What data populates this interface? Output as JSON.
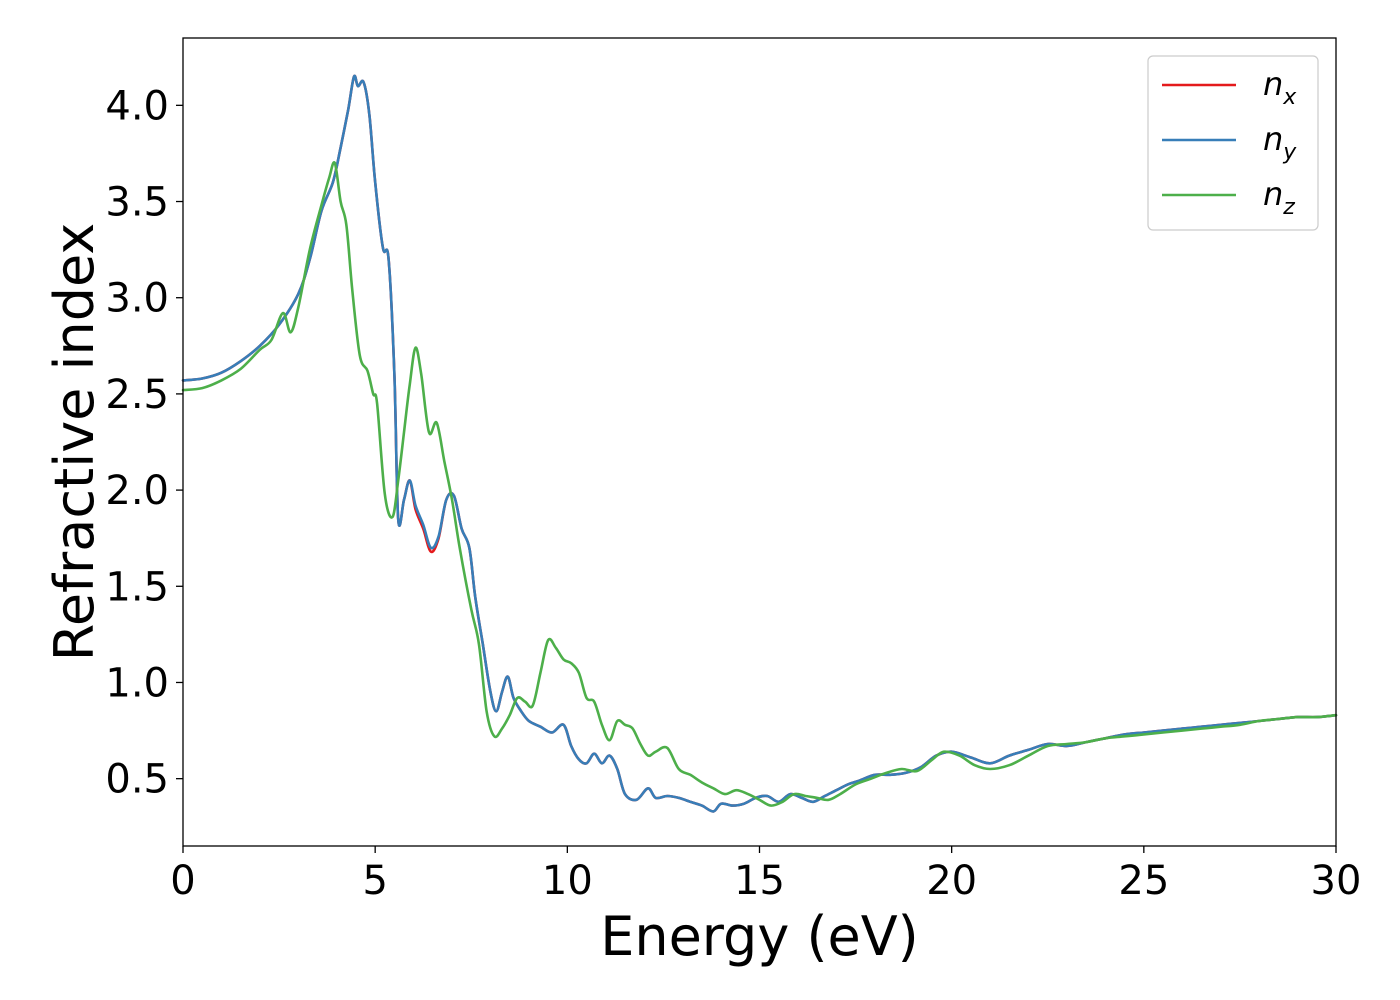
{
  "chart_data": {
    "type": "line",
    "title": "",
    "xlabel": "Energy (eV)",
    "ylabel": "Refractive index",
    "xlim": [
      0,
      30
    ],
    "ylim": [
      0.15,
      4.35
    ],
    "xticks": [
      0,
      5,
      10,
      15,
      20,
      25,
      30
    ],
    "xtick_labels": [
      "0",
      "5",
      "10",
      "15",
      "20",
      "25",
      "30"
    ],
    "yticks": [
      0.5,
      1.0,
      1.5,
      2.0,
      2.5,
      3.0,
      3.5,
      4.0
    ],
    "ytick_labels": [
      "0.5",
      "1.0",
      "1.5",
      "2.0",
      "2.5",
      "3.0",
      "3.5",
      "4.0"
    ],
    "grid": false,
    "legend": "top-right",
    "series": [
      {
        "name": "n",
        "subscript": "x",
        "color": "#e41a1c",
        "x": [
          0,
          0.5,
          1,
          1.5,
          2,
          2.5,
          3,
          3.3,
          3.6,
          3.9,
          4.1,
          4.3,
          4.45,
          4.55,
          4.7,
          4.85,
          5.0,
          5.2,
          5.35,
          5.5,
          5.6,
          5.75,
          5.9,
          6.05,
          6.25,
          6.45,
          6.65,
          6.85,
          7.05,
          7.25,
          7.45,
          7.6,
          7.8,
          8.0,
          8.15,
          8.3,
          8.45,
          8.6,
          8.8,
          9.0,
          9.3,
          9.6,
          9.9,
          10.1,
          10.3,
          10.5,
          10.7,
          10.9,
          11.1,
          11.3,
          11.5,
          11.8,
          12.1,
          12.3,
          12.6,
          12.9,
          13.2,
          13.5,
          13.8,
          14.0,
          14.3,
          14.6,
          14.9,
          15.2,
          15.5,
          15.8,
          16.1,
          16.4,
          16.7,
          17.0,
          17.3,
          17.6,
          18.0,
          18.4,
          18.8,
          19.2,
          19.6,
          20.0,
          20.5,
          21.0,
          21.5,
          22.0,
          22.5,
          23.0,
          23.5,
          24.0,
          24.5,
          25.0,
          25.5,
          26.0,
          26.5,
          27.0,
          27.5,
          28.0,
          28.5,
          29.0,
          29.5,
          30.0
        ],
        "y": [
          2.57,
          2.58,
          2.61,
          2.67,
          2.75,
          2.86,
          3.02,
          3.2,
          3.45,
          3.6,
          3.78,
          3.98,
          4.15,
          4.1,
          4.12,
          3.95,
          3.6,
          3.26,
          3.2,
          2.6,
          1.85,
          1.95,
          2.05,
          1.9,
          1.8,
          1.68,
          1.75,
          1.95,
          1.97,
          1.8,
          1.7,
          1.45,
          1.2,
          0.95,
          0.85,
          0.95,
          1.03,
          0.92,
          0.85,
          0.8,
          0.77,
          0.74,
          0.78,
          0.67,
          0.6,
          0.58,
          0.63,
          0.58,
          0.62,
          0.55,
          0.42,
          0.39,
          0.45,
          0.4,
          0.41,
          0.4,
          0.38,
          0.36,
          0.33,
          0.37,
          0.36,
          0.37,
          0.4,
          0.41,
          0.38,
          0.42,
          0.4,
          0.38,
          0.41,
          0.44,
          0.47,
          0.49,
          0.52,
          0.52,
          0.53,
          0.56,
          0.62,
          0.64,
          0.61,
          0.58,
          0.62,
          0.65,
          0.68,
          0.67,
          0.69,
          0.71,
          0.73,
          0.74,
          0.75,
          0.76,
          0.77,
          0.78,
          0.79,
          0.8,
          0.81,
          0.82,
          0.82,
          0.83
        ]
      },
      {
        "name": "n",
        "subscript": "y",
        "color": "#377eb8",
        "x": [
          0,
          0.5,
          1,
          1.5,
          2,
          2.5,
          3,
          3.3,
          3.6,
          3.9,
          4.1,
          4.3,
          4.45,
          4.55,
          4.7,
          4.85,
          5.0,
          5.2,
          5.35,
          5.5,
          5.6,
          5.75,
          5.9,
          6.05,
          6.25,
          6.45,
          6.65,
          6.85,
          7.05,
          7.25,
          7.45,
          7.6,
          7.8,
          8.0,
          8.15,
          8.3,
          8.45,
          8.6,
          8.8,
          9.0,
          9.3,
          9.6,
          9.9,
          10.1,
          10.3,
          10.5,
          10.7,
          10.9,
          11.1,
          11.3,
          11.5,
          11.8,
          12.1,
          12.3,
          12.6,
          12.9,
          13.2,
          13.5,
          13.8,
          14.0,
          14.3,
          14.6,
          14.9,
          15.2,
          15.5,
          15.8,
          16.1,
          16.4,
          16.7,
          17.0,
          17.3,
          17.6,
          18.0,
          18.4,
          18.8,
          19.2,
          19.6,
          20.0,
          20.5,
          21.0,
          21.5,
          22.0,
          22.5,
          23.0,
          23.5,
          24.0,
          24.5,
          25.0,
          25.5,
          26.0,
          26.5,
          27.0,
          27.5,
          28.0,
          28.5,
          29.0,
          29.5,
          30.0
        ],
        "y": [
          2.57,
          2.58,
          2.61,
          2.67,
          2.75,
          2.86,
          3.02,
          3.2,
          3.45,
          3.6,
          3.78,
          3.98,
          4.15,
          4.1,
          4.12,
          3.95,
          3.6,
          3.26,
          3.2,
          2.6,
          1.85,
          1.95,
          2.05,
          1.92,
          1.82,
          1.7,
          1.76,
          1.95,
          1.97,
          1.8,
          1.7,
          1.45,
          1.2,
          0.95,
          0.85,
          0.95,
          1.03,
          0.92,
          0.85,
          0.8,
          0.77,
          0.74,
          0.78,
          0.67,
          0.6,
          0.58,
          0.63,
          0.58,
          0.62,
          0.55,
          0.42,
          0.39,
          0.45,
          0.4,
          0.41,
          0.4,
          0.38,
          0.36,
          0.33,
          0.37,
          0.36,
          0.37,
          0.4,
          0.41,
          0.38,
          0.42,
          0.4,
          0.38,
          0.41,
          0.44,
          0.47,
          0.49,
          0.52,
          0.52,
          0.53,
          0.56,
          0.62,
          0.64,
          0.61,
          0.58,
          0.62,
          0.65,
          0.68,
          0.67,
          0.69,
          0.71,
          0.73,
          0.74,
          0.75,
          0.76,
          0.77,
          0.78,
          0.79,
          0.8,
          0.81,
          0.82,
          0.82,
          0.83
        ]
      },
      {
        "name": "n",
        "subscript": "z",
        "color": "#4daf4a",
        "x": [
          0,
          0.5,
          1,
          1.5,
          2,
          2.3,
          2.6,
          2.8,
          3.0,
          3.3,
          3.6,
          3.8,
          3.95,
          4.1,
          4.25,
          4.4,
          4.6,
          4.8,
          4.95,
          5.05,
          5.25,
          5.45,
          5.6,
          5.75,
          5.9,
          6.05,
          6.2,
          6.4,
          6.6,
          6.8,
          7.0,
          7.2,
          7.5,
          7.7,
          7.9,
          8.1,
          8.3,
          8.5,
          8.7,
          8.9,
          9.1,
          9.3,
          9.5,
          9.7,
          9.9,
          10.1,
          10.3,
          10.5,
          10.7,
          10.9,
          11.1,
          11.3,
          11.5,
          11.7,
          11.9,
          12.1,
          12.3,
          12.6,
          12.9,
          13.2,
          13.5,
          13.8,
          14.1,
          14.4,
          14.7,
          15.0,
          15.3,
          15.6,
          15.9,
          16.2,
          16.5,
          16.8,
          17.1,
          17.5,
          17.9,
          18.3,
          18.7,
          19.1,
          19.5,
          19.8,
          20.2,
          20.6,
          21.0,
          21.5,
          22.0,
          22.5,
          23.0,
          23.5,
          24.0,
          24.5,
          25.0,
          25.5,
          26.0,
          26.5,
          27.0,
          27.5,
          28.0,
          28.5,
          29.0,
          29.5,
          30.0
        ],
        "y": [
          2.52,
          2.53,
          2.57,
          2.63,
          2.73,
          2.78,
          2.92,
          2.82,
          2.95,
          3.25,
          3.48,
          3.62,
          3.7,
          3.5,
          3.38,
          3.05,
          2.7,
          2.62,
          2.5,
          2.45,
          1.98,
          1.86,
          2.05,
          2.3,
          2.55,
          2.74,
          2.6,
          2.3,
          2.35,
          2.15,
          1.95,
          1.7,
          1.38,
          1.2,
          0.85,
          0.72,
          0.76,
          0.83,
          0.92,
          0.9,
          0.88,
          1.05,
          1.22,
          1.18,
          1.12,
          1.1,
          1.05,
          0.92,
          0.9,
          0.78,
          0.7,
          0.8,
          0.78,
          0.76,
          0.68,
          0.62,
          0.64,
          0.66,
          0.55,
          0.52,
          0.48,
          0.45,
          0.42,
          0.44,
          0.42,
          0.39,
          0.36,
          0.38,
          0.42,
          0.41,
          0.4,
          0.39,
          0.42,
          0.47,
          0.5,
          0.53,
          0.55,
          0.54,
          0.6,
          0.64,
          0.62,
          0.57,
          0.55,
          0.57,
          0.62,
          0.67,
          0.68,
          0.69,
          0.71,
          0.72,
          0.73,
          0.74,
          0.75,
          0.76,
          0.77,
          0.78,
          0.8,
          0.81,
          0.82,
          0.82,
          0.83
        ]
      }
    ]
  }
}
